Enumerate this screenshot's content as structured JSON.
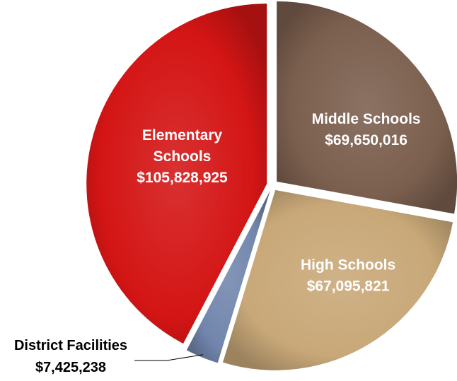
{
  "chart_data": {
    "type": "pie",
    "slices": [
      {
        "name": "Middle Schools",
        "label_lines": [
          "Middle Schools"
        ],
        "value": 69650016,
        "value_label": "$69,650,016",
        "color": "#7b5f4e",
        "label_position": "inside"
      },
      {
        "name": "High Schools",
        "label_lines": [
          "High Schools"
        ],
        "value": 67095821,
        "value_label": "$67,095,821",
        "color": "#c8a878",
        "label_position": "inside"
      },
      {
        "name": "District Facilities",
        "label_lines": [
          "District Facilities"
        ],
        "value": 7425238,
        "value_label": "$7,425,238",
        "color": "#7286ad",
        "label_position": "outside"
      },
      {
        "name": "Elementary Schools",
        "label_lines": [
          "Elementary",
          "Schools"
        ],
        "value": 105828925,
        "value_label": "$105,828,925",
        "color": "#d41515",
        "label_position": "inside"
      }
    ],
    "exploded": true,
    "legend": "none"
  }
}
